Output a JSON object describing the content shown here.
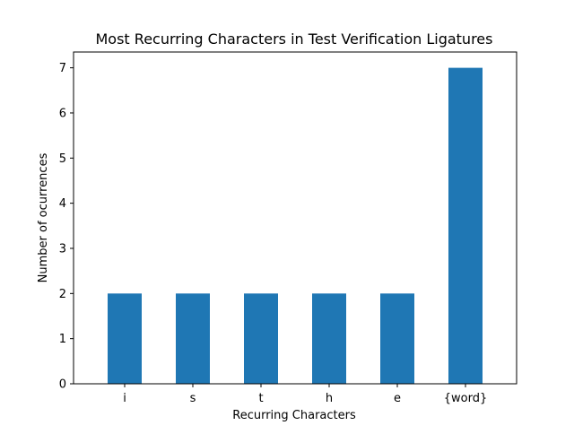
{
  "chart_data": {
    "type": "bar",
    "title": "Most Recurring Characters in Test Verification Ligatures",
    "xlabel": "Recurring Characters",
    "ylabel": "Number of ocurrences",
    "categories": [
      "i",
      "s",
      "t",
      "h",
      "e",
      "{word}"
    ],
    "values": [
      2,
      2,
      2,
      2,
      2,
      7
    ],
    "ylim": [
      0,
      7.35
    ],
    "yticks": [
      0,
      1,
      2,
      3,
      4,
      5,
      6,
      7
    ],
    "grid": false,
    "legend": "none",
    "bar_color": "#1f77b4"
  }
}
